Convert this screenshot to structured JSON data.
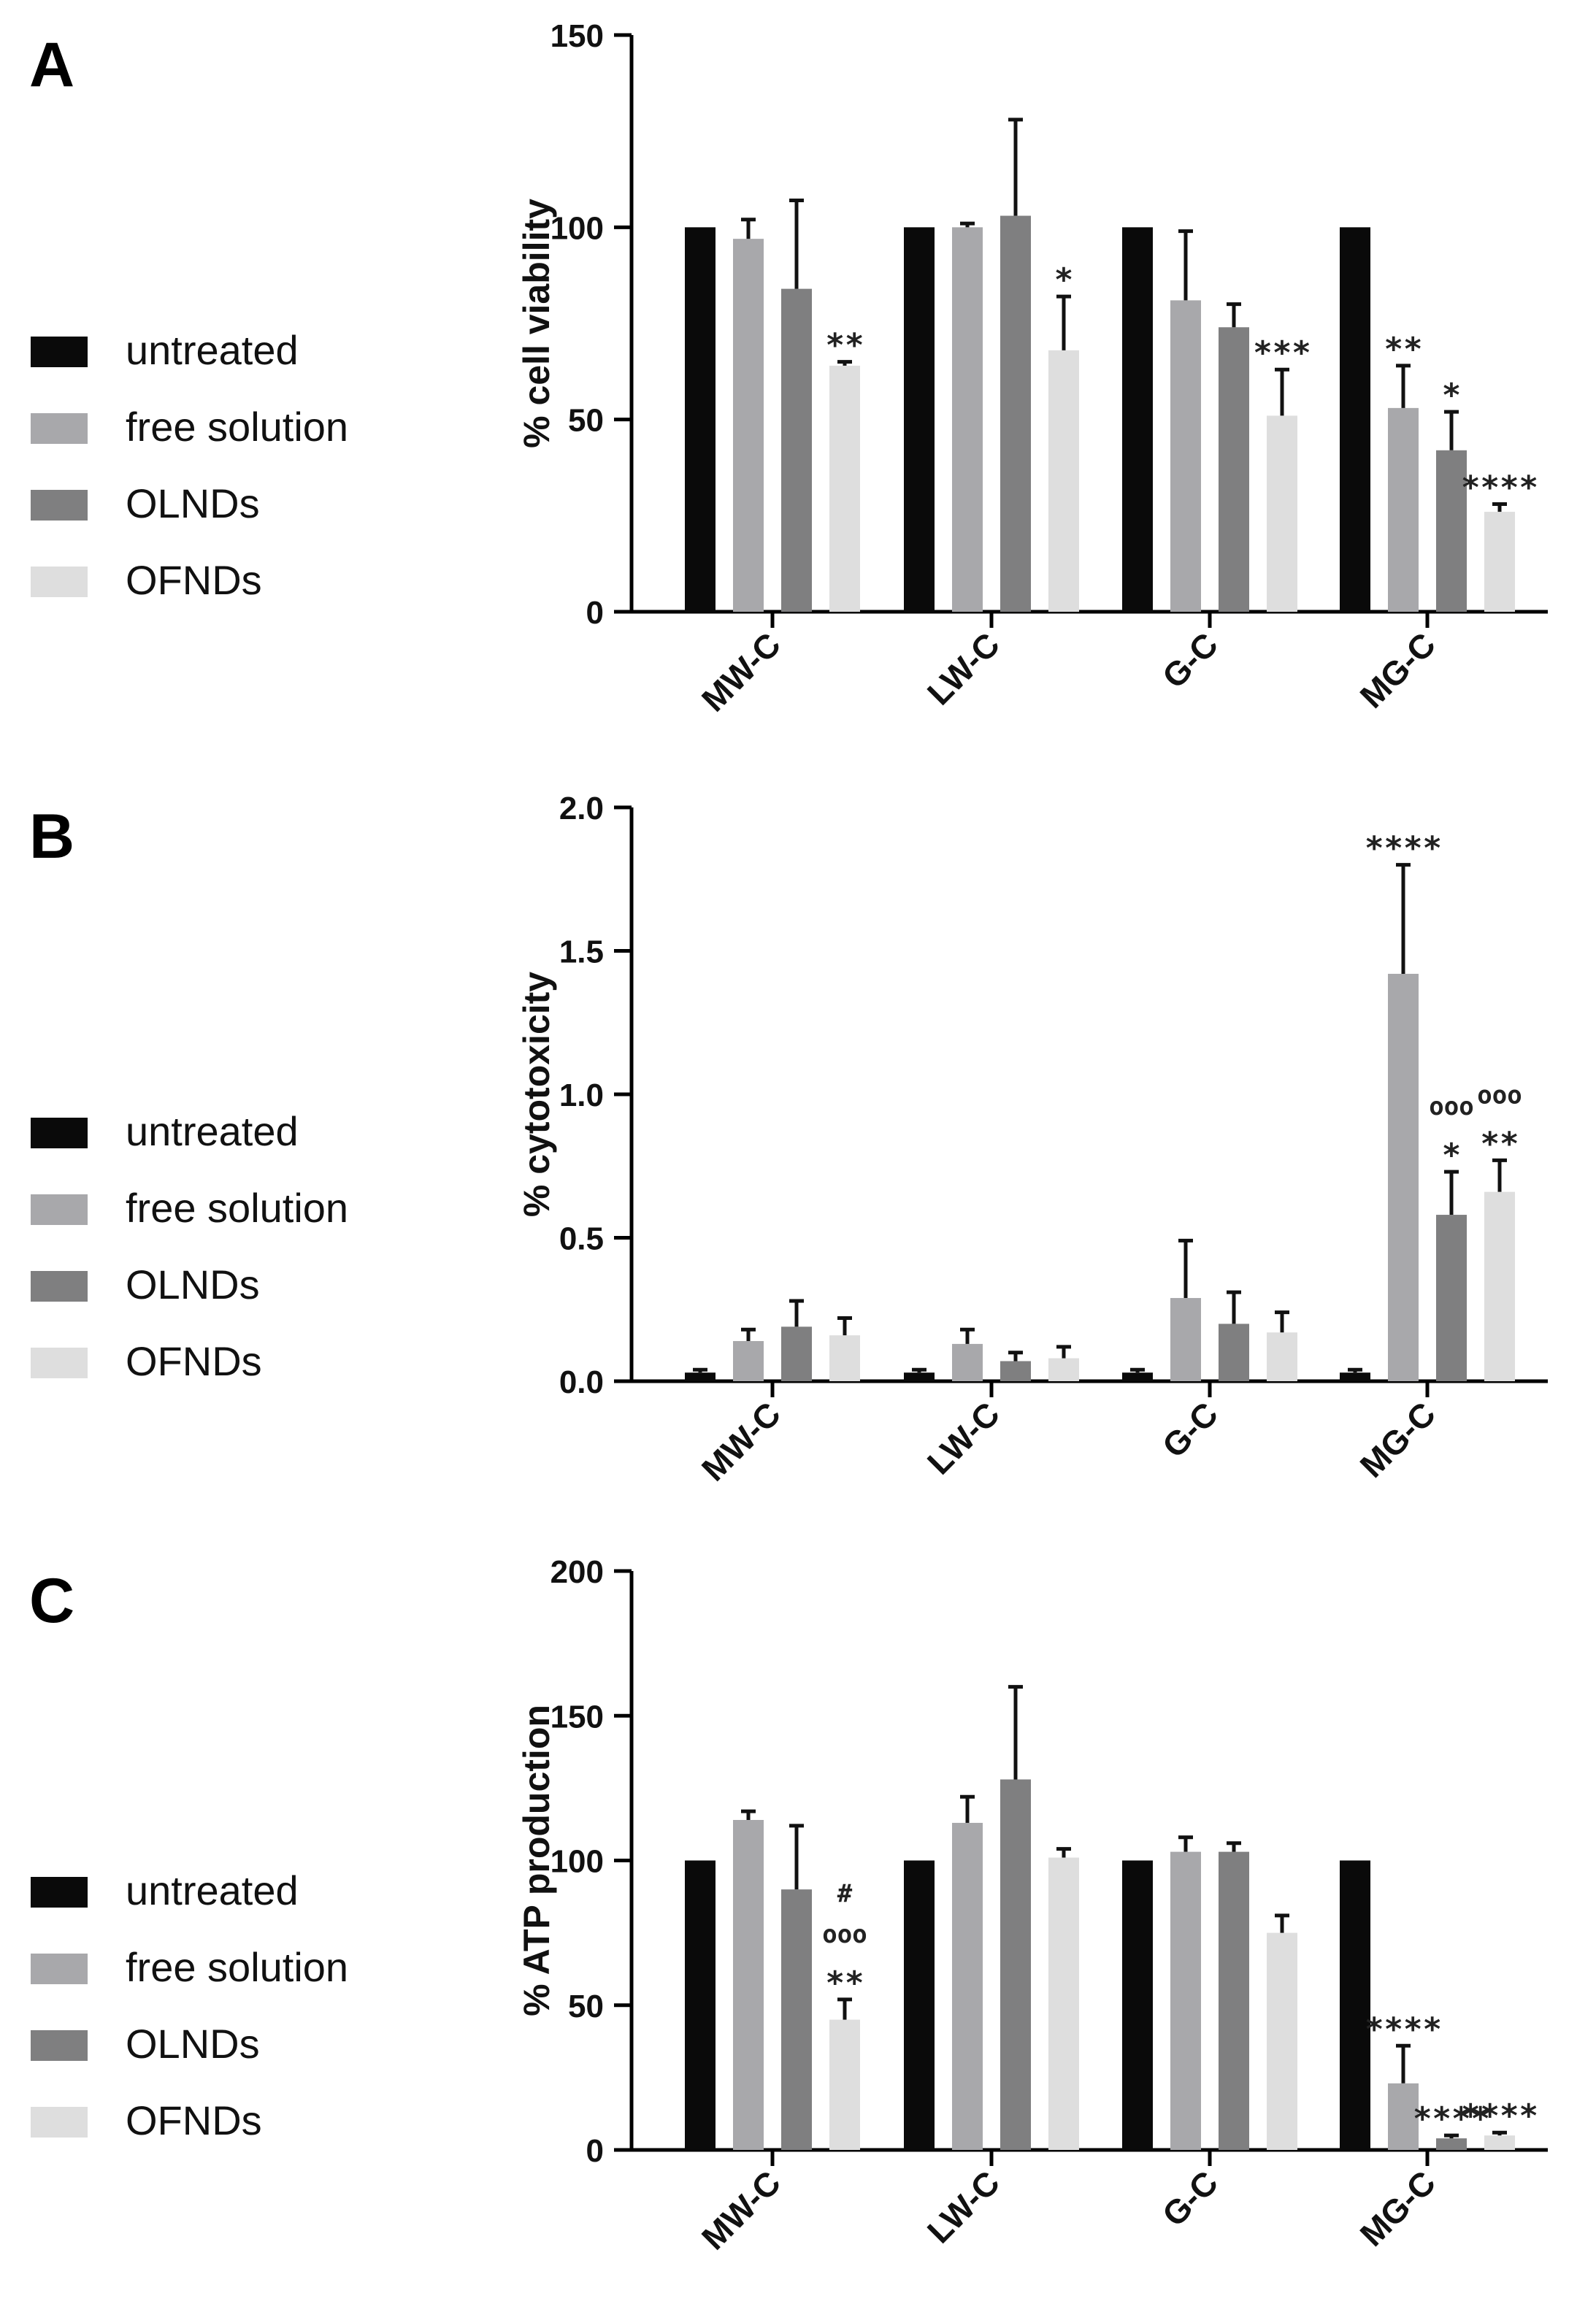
{
  "series": [
    {
      "name": "untreated",
      "color": "#0a0a0a"
    },
    {
      "name": "free solution",
      "color": "#a8a8ab"
    },
    {
      "name": "OLNDs",
      "color": "#7f7f80"
    },
    {
      "name": "OFNDs",
      "color": "#dedede"
    }
  ],
  "chart_data": [
    {
      "panel": "A",
      "type": "bar",
      "ylabel": "% cell viability",
      "ylim": [
        0,
        150
      ],
      "yticks": [
        "0",
        "50",
        "100",
        "150"
      ],
      "categories": [
        "MW-C",
        "LW-C",
        "G-C",
        "MG-C"
      ],
      "values": [
        [
          100,
          97,
          84,
          64
        ],
        [
          100,
          100,
          103,
          68
        ],
        [
          100,
          81,
          74,
          51
        ],
        [
          100,
          53,
          42,
          26
        ]
      ],
      "errors": [
        [
          0,
          5,
          23,
          1
        ],
        [
          0,
          1,
          25,
          14
        ],
        [
          0,
          18,
          6,
          12
        ],
        [
          0,
          11,
          10,
          2
        ]
      ],
      "annotations": [
        {
          "group": 0,
          "bar": 3,
          "lines": [
            "**"
          ]
        },
        {
          "group": 1,
          "bar": 3,
          "lines": [
            "*"
          ]
        },
        {
          "group": 2,
          "bar": 3,
          "lines": [
            "***"
          ]
        },
        {
          "group": 3,
          "bar": 1,
          "lines": [
            "**"
          ]
        },
        {
          "group": 3,
          "bar": 2,
          "lines": [
            "*"
          ]
        },
        {
          "group": 3,
          "bar": 3,
          "lines": [
            "****"
          ]
        }
      ]
    },
    {
      "panel": "B",
      "type": "bar",
      "ylabel": "% cytotoxicity",
      "ylim": [
        0,
        2.0
      ],
      "yticks": [
        "0.0",
        "0.5",
        "1.0",
        "1.5",
        "2.0"
      ],
      "categories": [
        "MW-C",
        "LW-C",
        "G-C",
        "MG-C"
      ],
      "values": [
        [
          0.03,
          0.14,
          0.19,
          0.16
        ],
        [
          0.03,
          0.13,
          0.07,
          0.08
        ],
        [
          0.03,
          0.29,
          0.2,
          0.17
        ],
        [
          0.03,
          1.42,
          0.58,
          0.66
        ]
      ],
      "errors": [
        [
          0.01,
          0.04,
          0.09,
          0.06
        ],
        [
          0.01,
          0.05,
          0.03,
          0.04
        ],
        [
          0.01,
          0.2,
          0.11,
          0.07
        ],
        [
          0.01,
          0.38,
          0.15,
          0.11
        ]
      ],
      "annotations": [
        {
          "group": 3,
          "bar": 1,
          "lines": [
            "****"
          ]
        },
        {
          "group": 3,
          "bar": 2,
          "lines": [
            "ooo",
            "*"
          ]
        },
        {
          "group": 3,
          "bar": 3,
          "lines": [
            "ooo",
            "**"
          ]
        }
      ]
    },
    {
      "panel": "C",
      "type": "bar",
      "ylabel": "% ATP production",
      "ylim": [
        0,
        200
      ],
      "yticks": [
        "0",
        "50",
        "100",
        "150",
        "200"
      ],
      "categories": [
        "MW-C",
        "LW-C",
        "G-C",
        "MG-C"
      ],
      "values": [
        [
          100,
          114,
          90,
          45
        ],
        [
          100,
          113,
          128,
          101
        ],
        [
          100,
          103,
          103,
          75
        ],
        [
          100,
          23,
          4,
          5
        ]
      ],
      "errors": [
        [
          0,
          3,
          22,
          7
        ],
        [
          0,
          9,
          32,
          3
        ],
        [
          0,
          5,
          3,
          6
        ],
        [
          0,
          13,
          1,
          1
        ]
      ],
      "annotations": [
        {
          "group": 0,
          "bar": 3,
          "lines": [
            "#",
            "ooo",
            "**"
          ]
        },
        {
          "group": 3,
          "bar": 1,
          "lines": [
            "****"
          ]
        },
        {
          "group": 3,
          "bar": 2,
          "lines": [
            "****"
          ]
        },
        {
          "group": 3,
          "bar": 3,
          "lines": [
            "****"
          ]
        }
      ]
    }
  ]
}
